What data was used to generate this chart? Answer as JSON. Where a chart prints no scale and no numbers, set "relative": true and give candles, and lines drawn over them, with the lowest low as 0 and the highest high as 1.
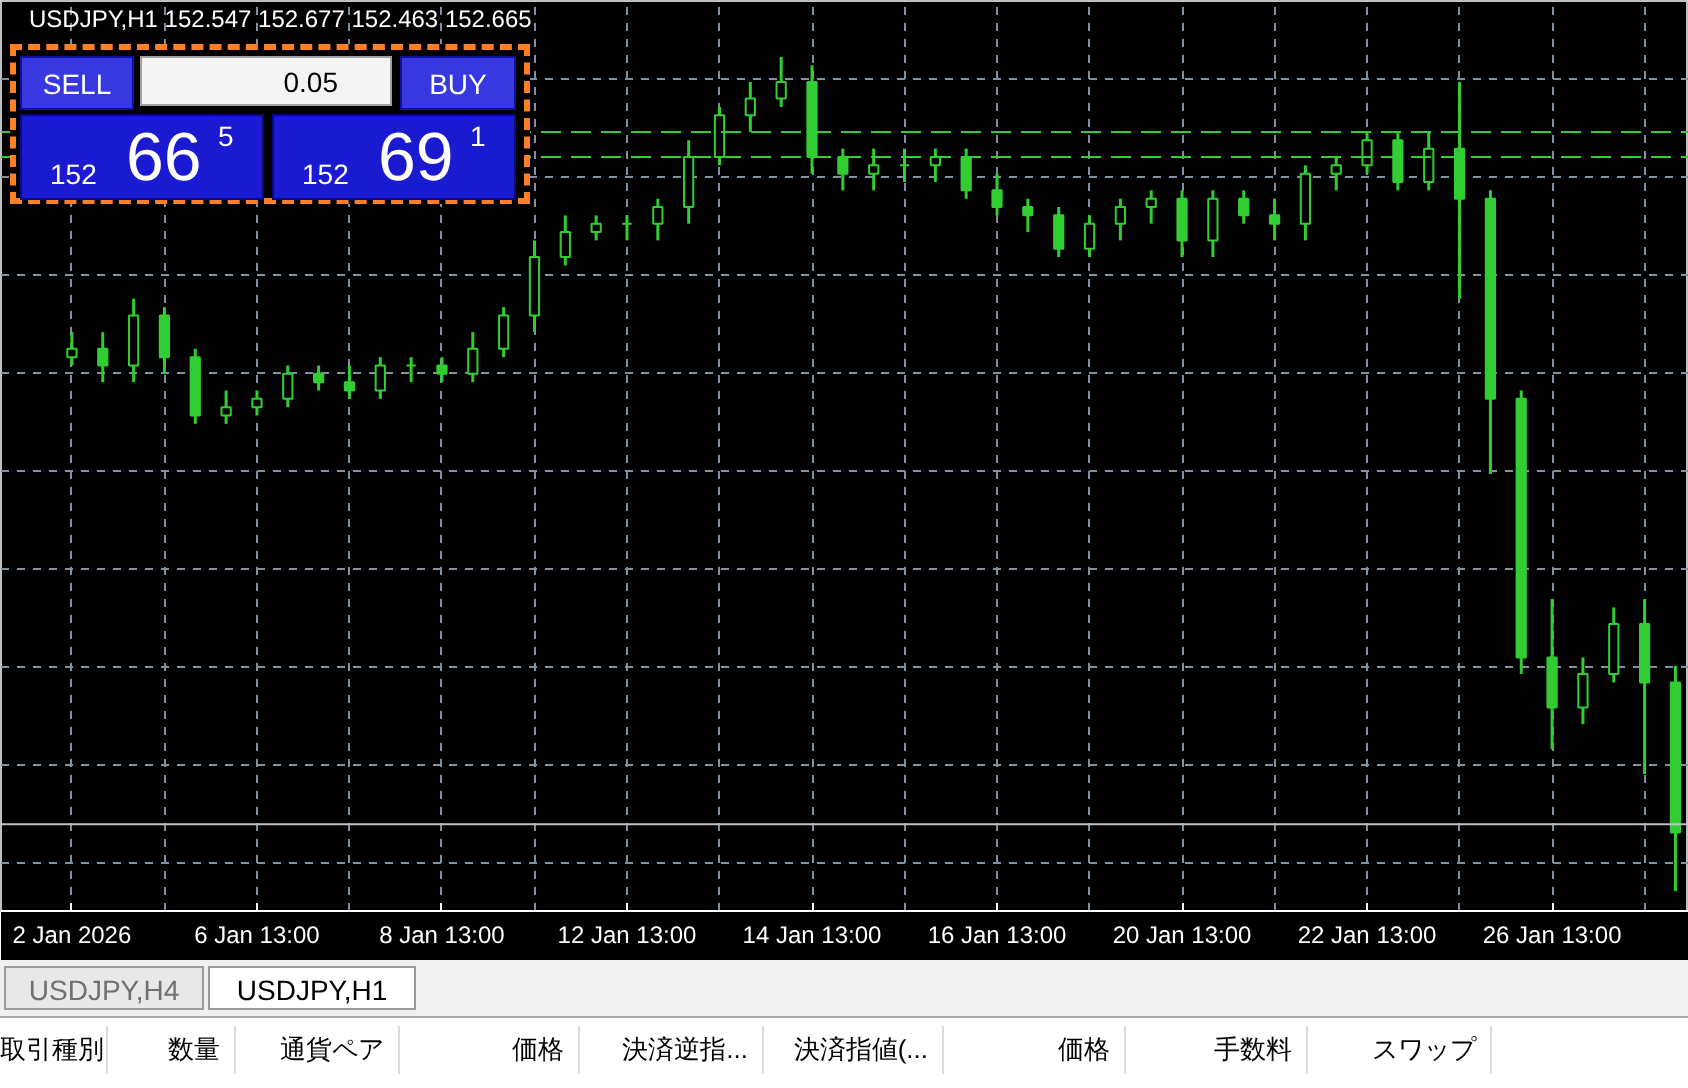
{
  "chart_data": {
    "type": "candlestick",
    "relative": true,
    "title": "USDJPY,H1  152.547 152.677 152.463 152.665",
    "color": "#32cd32",
    "grid": true,
    "categories": [
      "2 Jan 2026",
      null,
      null,
      null,
      null,
      null,
      "6 Jan 13:00",
      null,
      null,
      null,
      null,
      null,
      "8 Jan 13:00",
      null,
      null,
      null,
      null,
      null,
      "12 Jan 13:00",
      null,
      null,
      null,
      null,
      null,
      "14 Jan 13:00",
      null,
      null,
      null,
      null,
      null,
      "16 Jan 13:00",
      null,
      null,
      null,
      null,
      null,
      "20 Jan 13:00",
      null,
      null,
      null,
      null,
      null,
      "22 Jan 13:00",
      null,
      null,
      null,
      null,
      null,
      "26 Jan 13:00",
      null,
      null,
      null,
      null
    ],
    "ohlc": [
      [
        0.64,
        0.67,
        0.63,
        0.65
      ],
      [
        0.65,
        0.67,
        0.61,
        0.63
      ],
      [
        0.63,
        0.71,
        0.61,
        0.69
      ],
      [
        0.69,
        0.7,
        0.62,
        0.64
      ],
      [
        0.64,
        0.65,
        0.56,
        0.57
      ],
      [
        0.57,
        0.6,
        0.56,
        0.58
      ],
      [
        0.58,
        0.6,
        0.57,
        0.59
      ],
      [
        0.59,
        0.63,
        0.58,
        0.62
      ],
      [
        0.62,
        0.63,
        0.6,
        0.61
      ],
      [
        0.61,
        0.63,
        0.59,
        0.6
      ],
      [
        0.6,
        0.64,
        0.59,
        0.63
      ],
      [
        0.63,
        0.64,
        0.61,
        0.63
      ],
      [
        0.63,
        0.64,
        0.61,
        0.62
      ],
      [
        0.62,
        0.67,
        0.61,
        0.65
      ],
      [
        0.65,
        0.7,
        0.64,
        0.69
      ],
      [
        0.69,
        0.78,
        0.67,
        0.76
      ],
      [
        0.76,
        0.81,
        0.75,
        0.79
      ],
      [
        0.79,
        0.81,
        0.78,
        0.8
      ],
      [
        0.8,
        0.81,
        0.78,
        0.8
      ],
      [
        0.8,
        0.83,
        0.78,
        0.82
      ],
      [
        0.82,
        0.9,
        0.8,
        0.88
      ],
      [
        0.88,
        0.94,
        0.87,
        0.93
      ],
      [
        0.93,
        0.97,
        0.91,
        0.95
      ],
      [
        0.95,
        1.0,
        0.94,
        0.97
      ],
      [
        0.97,
        0.99,
        0.86,
        0.88
      ],
      [
        0.88,
        0.89,
        0.84,
        0.86
      ],
      [
        0.86,
        0.89,
        0.84,
        0.87
      ],
      [
        0.87,
        0.89,
        0.85,
        0.87
      ],
      [
        0.87,
        0.89,
        0.85,
        0.88
      ],
      [
        0.88,
        0.89,
        0.83,
        0.84
      ],
      [
        0.84,
        0.86,
        0.81,
        0.82
      ],
      [
        0.82,
        0.83,
        0.79,
        0.81
      ],
      [
        0.81,
        0.82,
        0.76,
        0.77
      ],
      [
        0.77,
        0.81,
        0.76,
        0.8
      ],
      [
        0.8,
        0.83,
        0.78,
        0.82
      ],
      [
        0.82,
        0.84,
        0.8,
        0.83
      ],
      [
        0.83,
        0.84,
        0.76,
        0.78
      ],
      [
        0.78,
        0.84,
        0.76,
        0.83
      ],
      [
        0.83,
        0.84,
        0.8,
        0.81
      ],
      [
        0.81,
        0.83,
        0.78,
        0.8
      ],
      [
        0.8,
        0.87,
        0.78,
        0.86
      ],
      [
        0.86,
        0.88,
        0.84,
        0.87
      ],
      [
        0.87,
        0.91,
        0.86,
        0.9
      ],
      [
        0.9,
        0.91,
        0.84,
        0.85
      ],
      [
        0.85,
        0.91,
        0.84,
        0.89
      ],
      [
        0.89,
        0.97,
        0.71,
        0.83
      ],
      [
        0.83,
        0.84,
        0.5,
        0.59
      ],
      [
        0.59,
        0.6,
        0.26,
        0.28
      ],
      [
        0.28,
        0.35,
        0.17,
        0.22
      ],
      [
        0.22,
        0.28,
        0.2,
        0.26
      ],
      [
        0.26,
        0.34,
        0.25,
        0.32
      ],
      [
        0.32,
        0.35,
        0.14,
        0.25
      ],
      [
        0.25,
        0.27,
        0.0,
        0.07
      ]
    ],
    "ref_lines": [
      {
        "axis": "y",
        "value": 0.91,
        "color": "#32cd32",
        "line_style": "dashed"
      },
      {
        "axis": "y",
        "value": 0.88,
        "color": "#32cd32",
        "line_style": "dashed"
      },
      {
        "axis": "y",
        "value": 0.08,
        "color": "#c0c0c0",
        "line_style": "solid"
      }
    ],
    "annotations": [
      "SELL",
      "0.05",
      "BUY",
      "152",
      "66",
      "5",
      "152",
      "69",
      "1",
      "USDJPY,H4",
      "USDJPY,H1",
      "取引種別",
      "数量",
      "通貨ペア",
      "価格",
      "決済逆指...",
      "決済指値(...",
      "価格",
      "手数料",
      "スワップ"
    ]
  }
}
